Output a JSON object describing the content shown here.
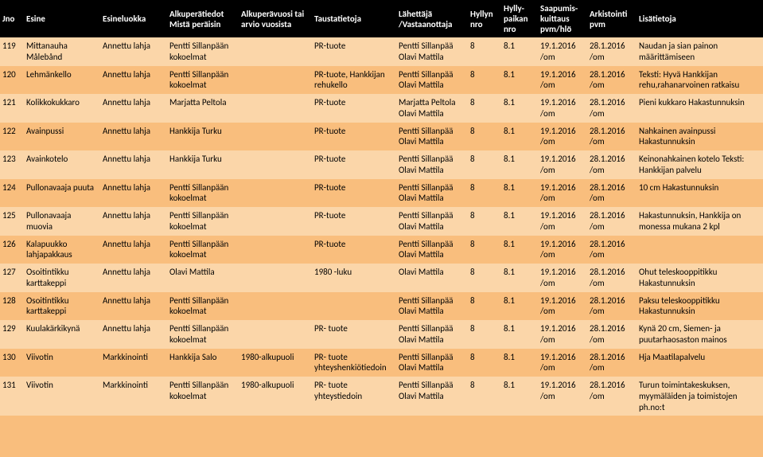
{
  "headers": {
    "jno": "Jno",
    "esine": "Esine",
    "luokka": "Esineluokka",
    "alku": "Alkuperätiedot Mistä peräisin",
    "vuosi": "Alkuperävuosi tai arvio vuosista",
    "tausta": "Taustatietoja",
    "lahet": "Lähettäjä /Vastaanottaja",
    "hnro": "Hyllyn nro",
    "hpnro": "Hylly-paikan nro",
    "kuitt": "Saapumis-kuittaus pvm/hlö",
    "arkis": "Arkistointi pvm",
    "lisa": "Lisätietoja"
  },
  "rows": [
    {
      "jno": "119",
      "esine": "Mittanauha Målebånd",
      "luokka": "Annettu lahja",
      "alku": "Pentti Sillanpään kokoelmat",
      "vuosi": "",
      "tausta": "PR-tuote",
      "lahet": "Pentti Sillanpää Olavi Mattila",
      "hnro": "8",
      "hpnro": "8.1",
      "kuitt": "19.1.2016 /om",
      "arkis": "28.1.2016 /om",
      "lisa": "Naudan ja sian painon määrittämiseen"
    },
    {
      "jno": "120",
      "esine": "Lehmänkello",
      "luokka": "Annettu lahja",
      "alku": "Pentti Sillanpään kokoelmat",
      "vuosi": "",
      "tausta": "PR-tuote, Hankkijan rehukello",
      "lahet": "Pentti Sillanpää Olavi Mattila",
      "hnro": "8",
      "hpnro": "8.1",
      "kuitt": "19.1.2016 /om",
      "arkis": "28.1.2016 /om",
      "lisa": "Teksti: Hyvä Hankkijan rehu,rahanarvoinen ratkaisu"
    },
    {
      "jno": "121",
      "esine": "Kolikkokukkaro",
      "luokka": "Annettu lahja",
      "alku": "Marjatta Peltola",
      "vuosi": "",
      "tausta": "PR-tuote",
      "lahet": "Marjatta Peltola Olavi Mattila",
      "hnro": "8",
      "hpnro": "8.1",
      "kuitt": "19.1.2016 /om",
      "arkis": "28.1.2016 /om",
      "lisa": "Pieni kukkaro Hakastunnuksin"
    },
    {
      "jno": "122",
      "esine": "Avainpussi",
      "luokka": "Annettu lahja",
      "alku": "Hankkija Turku",
      "vuosi": "",
      "tausta": "PR-tuote",
      "lahet": "Pentti Sillanpää Olavi Mattila",
      "hnro": "8",
      "hpnro": "8.1",
      "kuitt": "19.1.2016 /om",
      "arkis": "28.1.2016 /om",
      "lisa": "Nahkainen avainpussi Hakastunnuksin"
    },
    {
      "jno": "123",
      "esine": "Avainkotelo",
      "luokka": "Annettu lahja",
      "alku": "Hankkija Turku",
      "vuosi": "",
      "tausta": "PR-tuote",
      "lahet": "Pentti Sillanpää Olavi Mattila",
      "hnro": "8",
      "hpnro": "8.1",
      "kuitt": "19.1.2016 /om",
      "arkis": "28.1.2016 /om",
      "lisa": "Keinonahkainen kotelo  Teksti: Hankkijan palvelu"
    },
    {
      "jno": "124",
      "esine": "Pullonavaaja puuta",
      "luokka": "Annettu lahja",
      "alku": "Pentti Sillanpään kokoelmat",
      "vuosi": "",
      "tausta": "PR-tuote",
      "lahet": "Pentti Sillanpää Olavi Mattila",
      "hnro": "8",
      "hpnro": "8.1",
      "kuitt": "19.1.2016 /om",
      "arkis": "28.1.2016 /om",
      "lisa": "10 cm Hakastunnuksin"
    },
    {
      "jno": "125",
      "esine": "Pullonavaaja muovia",
      "luokka": "Annettu lahja",
      "alku": "Pentti Sillanpään kokoelmat",
      "vuosi": "",
      "tausta": "PR-tuote",
      "lahet": "Pentti Sillanpää Olavi Mattila",
      "hnro": "8",
      "hpnro": "8.1",
      "kuitt": "19.1.2016 /om",
      "arkis": "28.1.2016 /om",
      "lisa": "Hakastunnuksin, Hankkija on monessa mukana 2 kpl"
    },
    {
      "jno": "126",
      "esine": "Kalapuukko lahjapakkaus",
      "luokka": "Annettu lahja",
      "alku": "Pentti Sillanpään kokoelmat",
      "vuosi": "",
      "tausta": "PR-tuote",
      "lahet": "Pentti Sillanpää Olavi Mattila",
      "hnro": "8",
      "hpnro": "8.1",
      "kuitt": "19.1.2016 /om",
      "arkis": "28.1.2016 /om",
      "lisa": ""
    },
    {
      "jno": "127",
      "esine": "Osoitintikku karttakeppi",
      "luokka": "Annettu lahja",
      "alku": "Olavi Mattila",
      "vuosi": "",
      "tausta": "1980 -luku",
      "lahet": "Olavi Mattila",
      "hnro": "8",
      "hpnro": "8.1",
      "kuitt": "19.1.2016 /om",
      "arkis": "28.1.2016 /om",
      "lisa": "Ohut teleskooppitikku Hakastunnuksin"
    },
    {
      "jno": "128",
      "esine": "Osoitintikku karttakeppi",
      "luokka": "Annettu lahja",
      "alku": "Pentti Sillanpään kokoelmat",
      "vuosi": "",
      "tausta": "",
      "lahet": "Pentti Sillanpää Olavi Mattila",
      "hnro": "8",
      "hpnro": "8.1",
      "kuitt": "19.1.2016 /om",
      "arkis": "28.1.2016 /om",
      "lisa": "Paksu teleskooppitikku Hakastunnuksin"
    },
    {
      "jno": "129",
      "esine": "Kuulakärkikynä",
      "luokka": "Annettu lahja",
      "alku": "Pentti Sillanpään kokoelmat",
      "vuosi": "",
      "tausta": "PR- tuote",
      "lahet": "Pentti Sillanpää Olavi Mattila",
      "hnro": "8",
      "hpnro": "8.1",
      "kuitt": "19.1.2016 /om",
      "arkis": "28.1.2016 /om",
      "lisa": "Kynä 20 cm, Siemen- ja puutarhaosaston mainos"
    },
    {
      "jno": "130",
      "esine": "Viivotin",
      "luokka": "Markkinointi",
      "alku": "Hankkija Salo",
      "vuosi": "1980-alkupuoli",
      "tausta": "PR- tuote yhteyshenkiötiedoin",
      "lahet": "Pentti Sillanpää Olavi Mattila",
      "hnro": "8",
      "hpnro": "8.1",
      "kuitt": "19.1.2016 /om",
      "arkis": "28.1.2016 /om",
      "lisa": "Hja Maatilapalvelu"
    },
    {
      "jno": "131",
      "esine": "Viivotin",
      "luokka": "Markkinointi",
      "alku": "Pentti Sillanpään kokoelmat",
      "vuosi": "1980-alkupuoli",
      "tausta": "PR- tuote yhteystiedoin",
      "lahet": "Pentti Sillanpää Olavi Mattila",
      "hnro": "8",
      "hpnro": "8.1",
      "kuitt": "19.1.2016 /om",
      "arkis": "28.1.2016 /om",
      "lisa": "Turun toimintakeskuksen, myymäläiden ja toimistojen ph.no:t"
    }
  ]
}
